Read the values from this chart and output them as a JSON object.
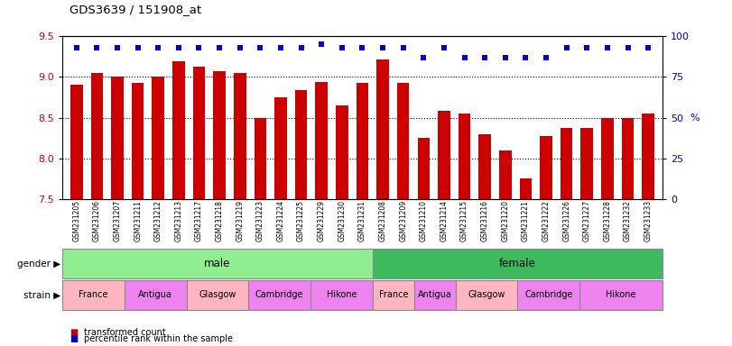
{
  "title": "GDS3639 / 151908_at",
  "samples": [
    "GSM231205",
    "GSM231206",
    "GSM231207",
    "GSM231211",
    "GSM231212",
    "GSM231213",
    "GSM231217",
    "GSM231218",
    "GSM231219",
    "GSM231223",
    "GSM231224",
    "GSM231225",
    "GSM231229",
    "GSM231230",
    "GSM231231",
    "GSM231208",
    "GSM231209",
    "GSM231210",
    "GSM231214",
    "GSM231215",
    "GSM231216",
    "GSM231220",
    "GSM231221",
    "GSM231222",
    "GSM231226",
    "GSM231227",
    "GSM231228",
    "GSM231232",
    "GSM231233"
  ],
  "bar_values": [
    8.9,
    9.05,
    9.0,
    8.93,
    9.0,
    9.19,
    9.13,
    9.07,
    9.05,
    8.5,
    8.75,
    8.84,
    8.94,
    8.65,
    8.93,
    9.22,
    8.93,
    8.25,
    8.58,
    8.55,
    8.3,
    8.1,
    7.75,
    8.27,
    8.37,
    8.37,
    8.5,
    8.5,
    8.55
  ],
  "percentile_values": [
    93,
    93,
    93,
    93,
    93,
    93,
    93,
    93,
    93,
    93,
    93,
    93,
    95,
    93,
    93,
    93,
    93,
    87,
    93,
    87,
    87,
    87,
    87,
    87,
    93,
    93,
    93,
    93,
    93
  ],
  "ylim": [
    7.5,
    9.5
  ],
  "yticks": [
    7.5,
    8.0,
    8.5,
    9.0,
    9.5
  ],
  "right_yticks": [
    0,
    25,
    50,
    75,
    100
  ],
  "right_ylim": [
    0,
    100
  ],
  "bar_color": "#cc0000",
  "dot_color": "#0000cc",
  "gender_groups": [
    {
      "label": "male",
      "start": 0,
      "end": 15,
      "color": "#90ee90"
    },
    {
      "label": "female",
      "start": 15,
      "end": 29,
      "color": "#3dba5e"
    }
  ],
  "strain_groups": [
    {
      "label": "France",
      "start": 0,
      "end": 3,
      "color": "#ffb6c1"
    },
    {
      "label": "Antigua",
      "start": 3,
      "end": 6,
      "color": "#ee82ee"
    },
    {
      "label": "Glasgow",
      "start": 6,
      "end": 9,
      "color": "#ffb6c1"
    },
    {
      "label": "Cambridge",
      "start": 9,
      "end": 12,
      "color": "#ee82ee"
    },
    {
      "label": "Hikone",
      "start": 12,
      "end": 15,
      "color": "#ee82ee"
    },
    {
      "label": "France",
      "start": 15,
      "end": 17,
      "color": "#ffb6c1"
    },
    {
      "label": "Antigua",
      "start": 17,
      "end": 19,
      "color": "#ee82ee"
    },
    {
      "label": "Glasgow",
      "start": 19,
      "end": 22,
      "color": "#ffb6c1"
    },
    {
      "label": "Cambridge",
      "start": 22,
      "end": 25,
      "color": "#ee82ee"
    },
    {
      "label": "Hikone",
      "start": 25,
      "end": 29,
      "color": "#ee82ee"
    }
  ],
  "legend_bar_label": "transformed count",
  "legend_dot_label": "percentile rank within the sample",
  "bar_color_label": "#cc0000",
  "dot_color_label": "#0000cc",
  "background_color": "#ffffff"
}
